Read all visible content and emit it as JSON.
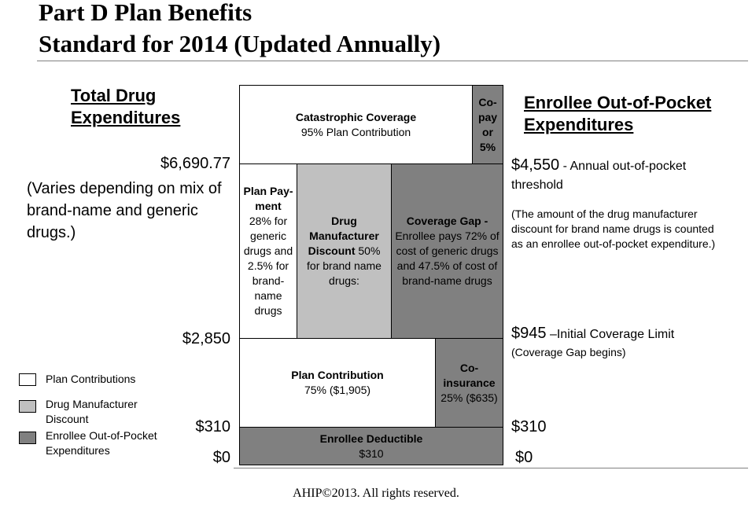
{
  "title": {
    "line1": "Part D Plan Benefits",
    "line2": "Standard for 2014 (Updated Annually)"
  },
  "left_heading": {
    "line1": "Total Drug",
    "line2": "Expenditures"
  },
  "right_heading": {
    "line1": "Enrollee Out-of-Pocket",
    "line2": "Expenditures"
  },
  "left_labels": {
    "top_amount": "$6,690.77",
    "varies_note": "(Varies depending on mix of brand-name and generic drugs.)",
    "mid_amount": "$2,850",
    "deductible_amount": "$310",
    "zero": "$0"
  },
  "right_labels": {
    "top_amount": "$4,550",
    "top_desc": " - Annual out-of-pocket threshold",
    "discount_note": "(The amount of the drug manufacturer discount for brand name drugs is counted as an enrollee out-of-pocket expenditure.)",
    "mid_amount": "$945",
    "mid_desc": " –Initial Coverage Limit",
    "mid_note": "(Coverage Gap begins)",
    "deductible_amount": "$310",
    "zero": "$0"
  },
  "boxes": {
    "catastrophic": {
      "title": "Catastrophic Coverage",
      "text": "95% Plan Contribution"
    },
    "copay": {
      "text": "Co-pay or 5%"
    },
    "plan_payment": {
      "title": "Plan Pay-ment",
      "text": "28% for generic drugs and 2.5% for brand-name drugs"
    },
    "manufacturer": {
      "title": "Drug Manufacturer Discount",
      "text": " 50% for brand name drugs:"
    },
    "coverage_gap": {
      "title": "Coverage Gap -",
      "text": "Enrollee pays 72% of cost of generic drugs and 47.5% of cost of brand-name drugs"
    },
    "plan_contribution": {
      "title": "Plan Contribution",
      "text": "75%  ($1,905)"
    },
    "coinsurance": {
      "title": "Co-insurance",
      "text": "25% ($635)"
    },
    "deductible": {
      "title": "Enrollee Deductible",
      "text": "$310"
    }
  },
  "legend": {
    "items": [
      {
        "label": "Plan Contributions",
        "color": "#ffffff"
      },
      {
        "label": "Drug Manufacturer Discount",
        "color": "#c0c0c0"
      },
      {
        "label": "Enrollee Out-of-Pocket Expenditures",
        "color": "#808080"
      }
    ]
  },
  "colors": {
    "plan": "#ffffff",
    "manufacturer": "#c0c0c0",
    "enrollee": "#808080"
  },
  "footer": "AHIP©2013.  All rights reserved."
}
